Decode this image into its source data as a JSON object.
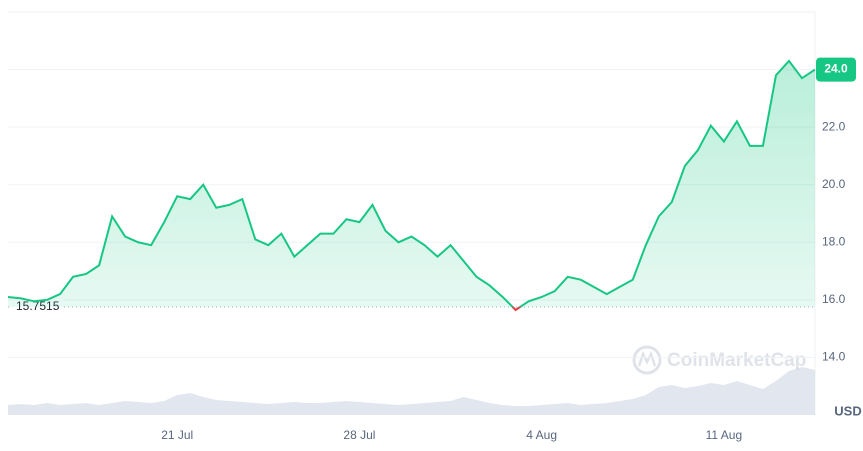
{
  "chart_data": {
    "type": "line",
    "categories": [
      null,
      null,
      null,
      null,
      null,
      null,
      null,
      null,
      null,
      null,
      null,
      null,
      null,
      "21 Jul",
      null,
      null,
      null,
      null,
      null,
      null,
      null,
      null,
      null,
      null,
      null,
      null,
      null,
      "28 Jul",
      null,
      null,
      null,
      null,
      null,
      null,
      null,
      null,
      null,
      null,
      null,
      null,
      null,
      "4 Aug",
      null,
      null,
      null,
      null,
      null,
      null,
      null,
      null,
      null,
      null,
      null,
      null,
      null,
      "11 Aug",
      null,
      null,
      null,
      null,
      null,
      null,
      null
    ],
    "series": [
      {
        "color": "#16c784",
        "values": [
          16.1,
          16.05,
          15.95,
          16.0,
          16.2,
          16.8,
          16.9,
          17.2,
          18.9,
          18.2,
          18.0,
          17.9,
          18.7,
          19.6,
          19.5,
          20.0,
          19.2,
          19.3,
          19.5,
          18.1,
          17.9,
          18.3,
          17.5,
          17.9,
          18.3,
          18.3,
          18.8,
          18.7,
          19.3,
          18.4,
          18.0,
          18.2,
          17.9,
          17.5,
          17.9,
          17.35,
          16.8,
          16.5,
          16.1,
          15.65,
          15.95,
          16.1,
          16.3,
          16.8,
          16.7,
          16.45,
          16.2,
          16.45,
          16.7,
          17.9,
          18.9,
          19.4,
          20.65,
          21.2,
          22.05,
          21.5,
          22.2,
          21.35,
          21.35,
          23.8,
          24.3,
          23.7,
          24.0
        ]
      }
    ],
    "volume": [
      10,
      11,
      10,
      12,
      10,
      11,
      12,
      10,
      12,
      14,
      13,
      12,
      14,
      20,
      22,
      18,
      15,
      14,
      13,
      12,
      11,
      12,
      13,
      12,
      12,
      13,
      14,
      13,
      12,
      11,
      10,
      11,
      12,
      13,
      14,
      18,
      15,
      12,
      10,
      9,
      9,
      10,
      11,
      12,
      10,
      11,
      12,
      14,
      16,
      20,
      28,
      30,
      27,
      29,
      32,
      30,
      34,
      30,
      26,
      34,
      44,
      48,
      45
    ],
    "down_color": "#ea3943",
    "reference": {
      "value": 15.7515,
      "label": "15.7515"
    },
    "current_price": {
      "value": 24.0,
      "label": "24.0"
    },
    "unit": "USD",
    "watermark": "CoinMarketCap",
    "ylim": [
      12,
      26
    ],
    "yticks": [
      {
        "value": 14,
        "label": "14.0"
      },
      {
        "value": 16,
        "label": "16.0"
      },
      {
        "value": 18,
        "label": "18.0"
      },
      {
        "value": 20,
        "label": "20.0"
      },
      {
        "value": 22,
        "label": "22.0"
      },
      {
        "value": 24,
        "label": "24.0"
      }
    ],
    "grid": true
  }
}
